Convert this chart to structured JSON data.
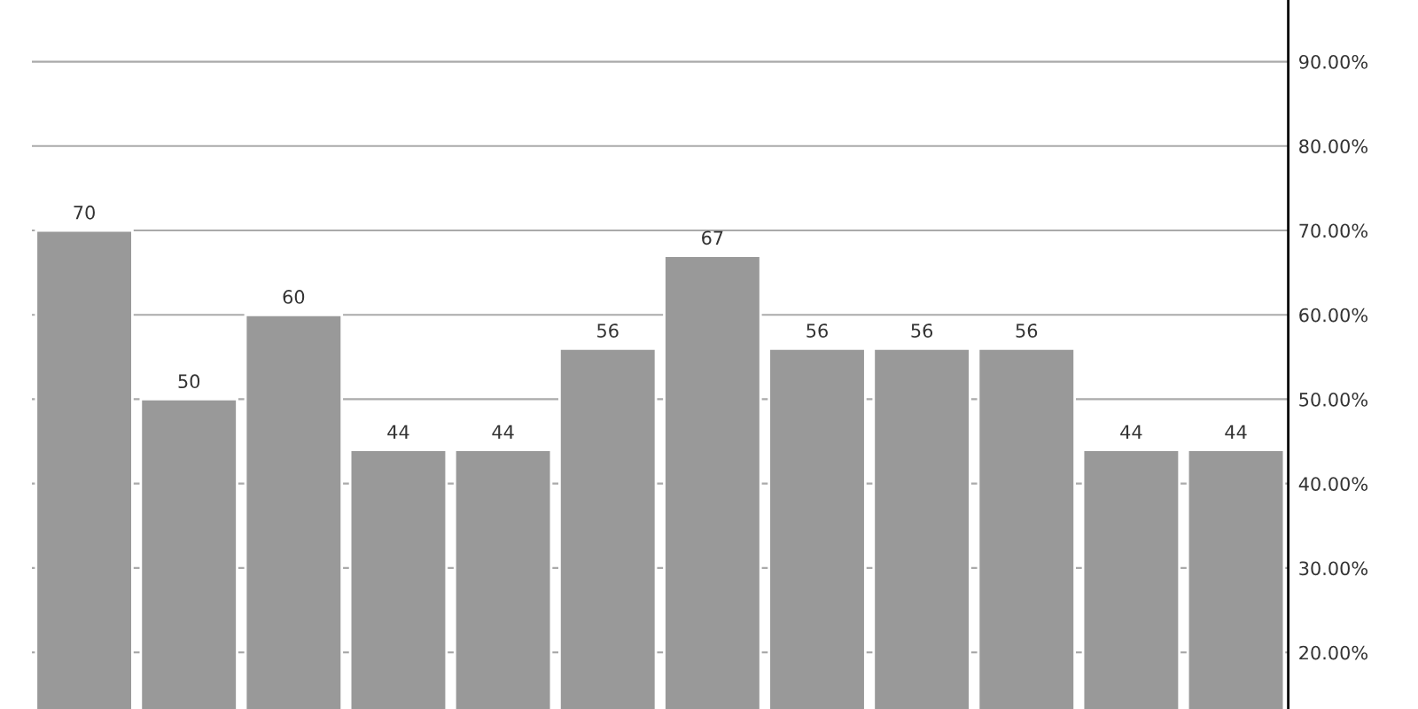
{
  "chart_data": {
    "type": "bar",
    "categories": [
      null,
      null,
      null,
      null,
      null,
      null,
      null,
      null,
      null,
      null,
      null,
      null
    ],
    "values": [
      70,
      50,
      60,
      44,
      44,
      56,
      67,
      56,
      56,
      56,
      44,
      44
    ],
    "color": "#999999",
    "data_labels": true,
    "ylim": [
      13.3,
      97.3
    ],
    "yticks": [
      {
        "value": 20,
        "label": "20.00%"
      },
      {
        "value": 30,
        "label": "30.00%"
      },
      {
        "value": 40,
        "label": "40.00%"
      },
      {
        "value": 50,
        "label": "50.00%"
      },
      {
        "value": 60,
        "label": "60.00%"
      },
      {
        "value": 70,
        "label": "70.00%"
      },
      {
        "value": 80,
        "label": "80.00%"
      },
      {
        "value": 90,
        "label": "90.00%"
      }
    ],
    "grid": "y",
    "tick_labels": "y"
  }
}
